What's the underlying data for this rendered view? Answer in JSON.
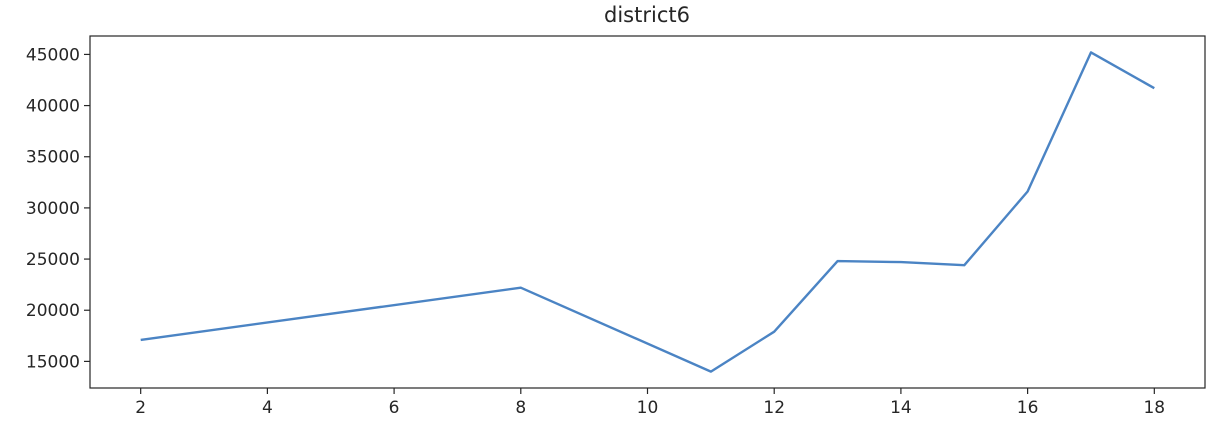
{
  "chart_data": {
    "type": "line",
    "title": "district6",
    "xlabel": "",
    "ylabel": "",
    "xlim": [
      1.2,
      18.8
    ],
    "ylim": [
      12400,
      46800
    ],
    "xticks": [
      2,
      4,
      6,
      8,
      10,
      12,
      14,
      16,
      18
    ],
    "yticks": [
      15000,
      20000,
      25000,
      30000,
      35000,
      40000,
      45000
    ],
    "grid": false,
    "series": [
      {
        "color": "#4b84c4",
        "x": [
          2,
          8,
          11,
          12,
          13,
          14,
          15,
          16,
          17,
          18
        ],
        "y": [
          17100,
          22200,
          14000,
          17900,
          24800,
          24700,
          24400,
          31600,
          45200,
          41700
        ]
      }
    ]
  }
}
